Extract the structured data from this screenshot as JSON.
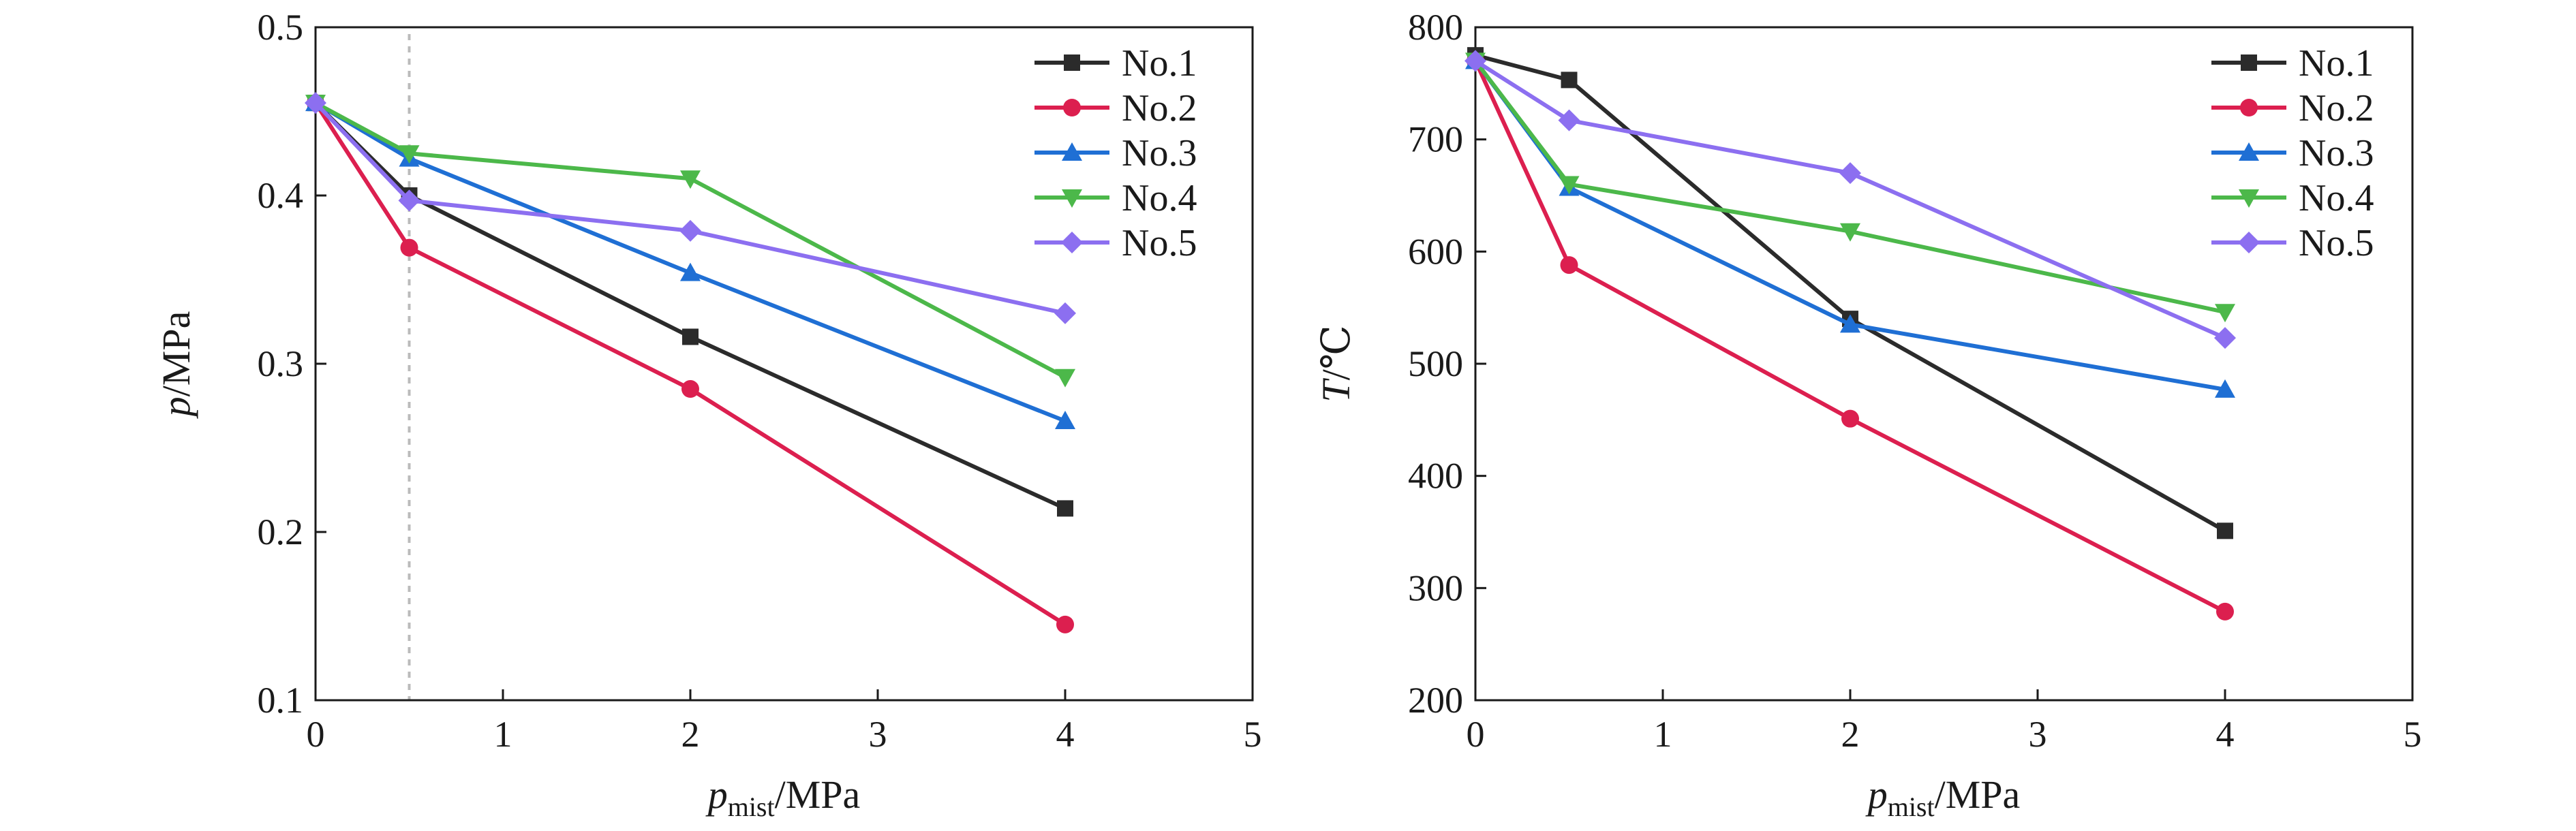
{
  "colors": {
    "No.1": "#2b2b2b",
    "No.2": "#dc1f4f",
    "No.3": "#1f6fd4",
    "No.4": "#4cb84a",
    "No.5": "#8c6ff0",
    "axis": "#1a1a1a",
    "dashed_line": "#bbbbbb"
  },
  "markers": {
    "No.1": "square",
    "No.2": "circle",
    "No.3": "triangle-up",
    "No.4": "triangle-down",
    "No.5": "diamond"
  },
  "chart_data": [
    {
      "type": "line",
      "title": "",
      "xlabel": {
        "var": "p",
        "sub": "mist",
        "unit": "/MPa"
      },
      "ylabel": {
        "var": "p",
        "unit": "/MPa"
      },
      "xlim": [
        0,
        5
      ],
      "ylim": [
        0.1,
        0.5
      ],
      "xticks": [
        "0",
        "1",
        "2",
        "3",
        "4",
        "5"
      ],
      "xtick_values": [
        0,
        1,
        2,
        3,
        4,
        5
      ],
      "yticks": [
        "0.1",
        "0.2",
        "0.3",
        "0.4",
        "0.5"
      ],
      "ytick_values": [
        0.1,
        0.2,
        0.3,
        0.4,
        0.5
      ],
      "grid": false,
      "legend": "top-right",
      "vline_x": 0.5,
      "x": [
        0,
        0.5,
        2,
        4
      ],
      "series": [
        {
          "name": "No.1",
          "values": [
            0.455,
            0.4,
            0.316,
            0.214
          ]
        },
        {
          "name": "No.2",
          "values": [
            0.455,
            0.369,
            0.285,
            0.145
          ]
        },
        {
          "name": "No.3",
          "values": [
            0.455,
            0.422,
            0.354,
            0.266
          ]
        },
        {
          "name": "No.4",
          "values": [
            0.455,
            0.425,
            0.41,
            0.292
          ]
        },
        {
          "name": "No.5",
          "values": [
            0.455,
            0.397,
            0.379,
            0.33
          ]
        }
      ]
    },
    {
      "type": "line",
      "title": "",
      "xlabel": {
        "var": "p",
        "sub": "mist",
        "unit": "/MPa"
      },
      "ylabel": {
        "var": "T",
        "unit": "/℃"
      },
      "xlim": [
        0,
        5
      ],
      "ylim": [
        200,
        800
      ],
      "xticks": [
        "0",
        "1",
        "2",
        "3",
        "4",
        "5"
      ],
      "xtick_values": [
        0,
        1,
        2,
        3,
        4,
        5
      ],
      "yticks": [
        "200",
        "300",
        "400",
        "500",
        "600",
        "700",
        "800"
      ],
      "ytick_values": [
        200,
        300,
        400,
        500,
        600,
        700,
        800
      ],
      "grid": false,
      "legend": "top-right",
      "x": [
        0,
        0.5,
        2,
        4
      ],
      "series": [
        {
          "name": "No.1",
          "values": [
            775,
            753,
            540,
            351
          ]
        },
        {
          "name": "No.2",
          "values": [
            770,
            588,
            451,
            279
          ]
        },
        {
          "name": "No.3",
          "values": [
            770,
            657,
            535,
            477
          ]
        },
        {
          "name": "No.4",
          "values": [
            770,
            660,
            618,
            546
          ]
        },
        {
          "name": "No.5",
          "values": [
            770,
            717,
            670,
            523
          ]
        }
      ]
    }
  ]
}
